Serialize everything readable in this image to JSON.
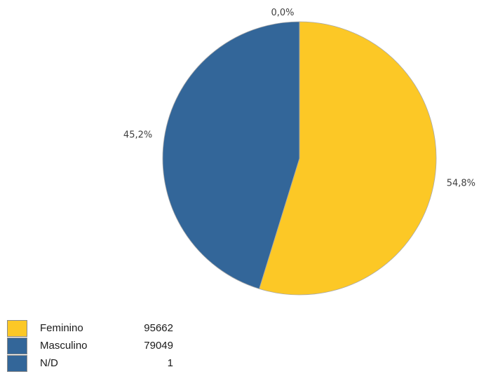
{
  "chart_data": {
    "type": "pie",
    "categories": [
      "Feminino",
      "Masculino",
      "N/D"
    ],
    "values": [
      95662,
      79049,
      1
    ],
    "percent_labels": [
      "54,8%",
      "45,2%",
      "0,0%"
    ],
    "colors": [
      "#FCC826",
      "#336699",
      "#336699"
    ],
    "legend_placement": "bottom-left"
  }
}
